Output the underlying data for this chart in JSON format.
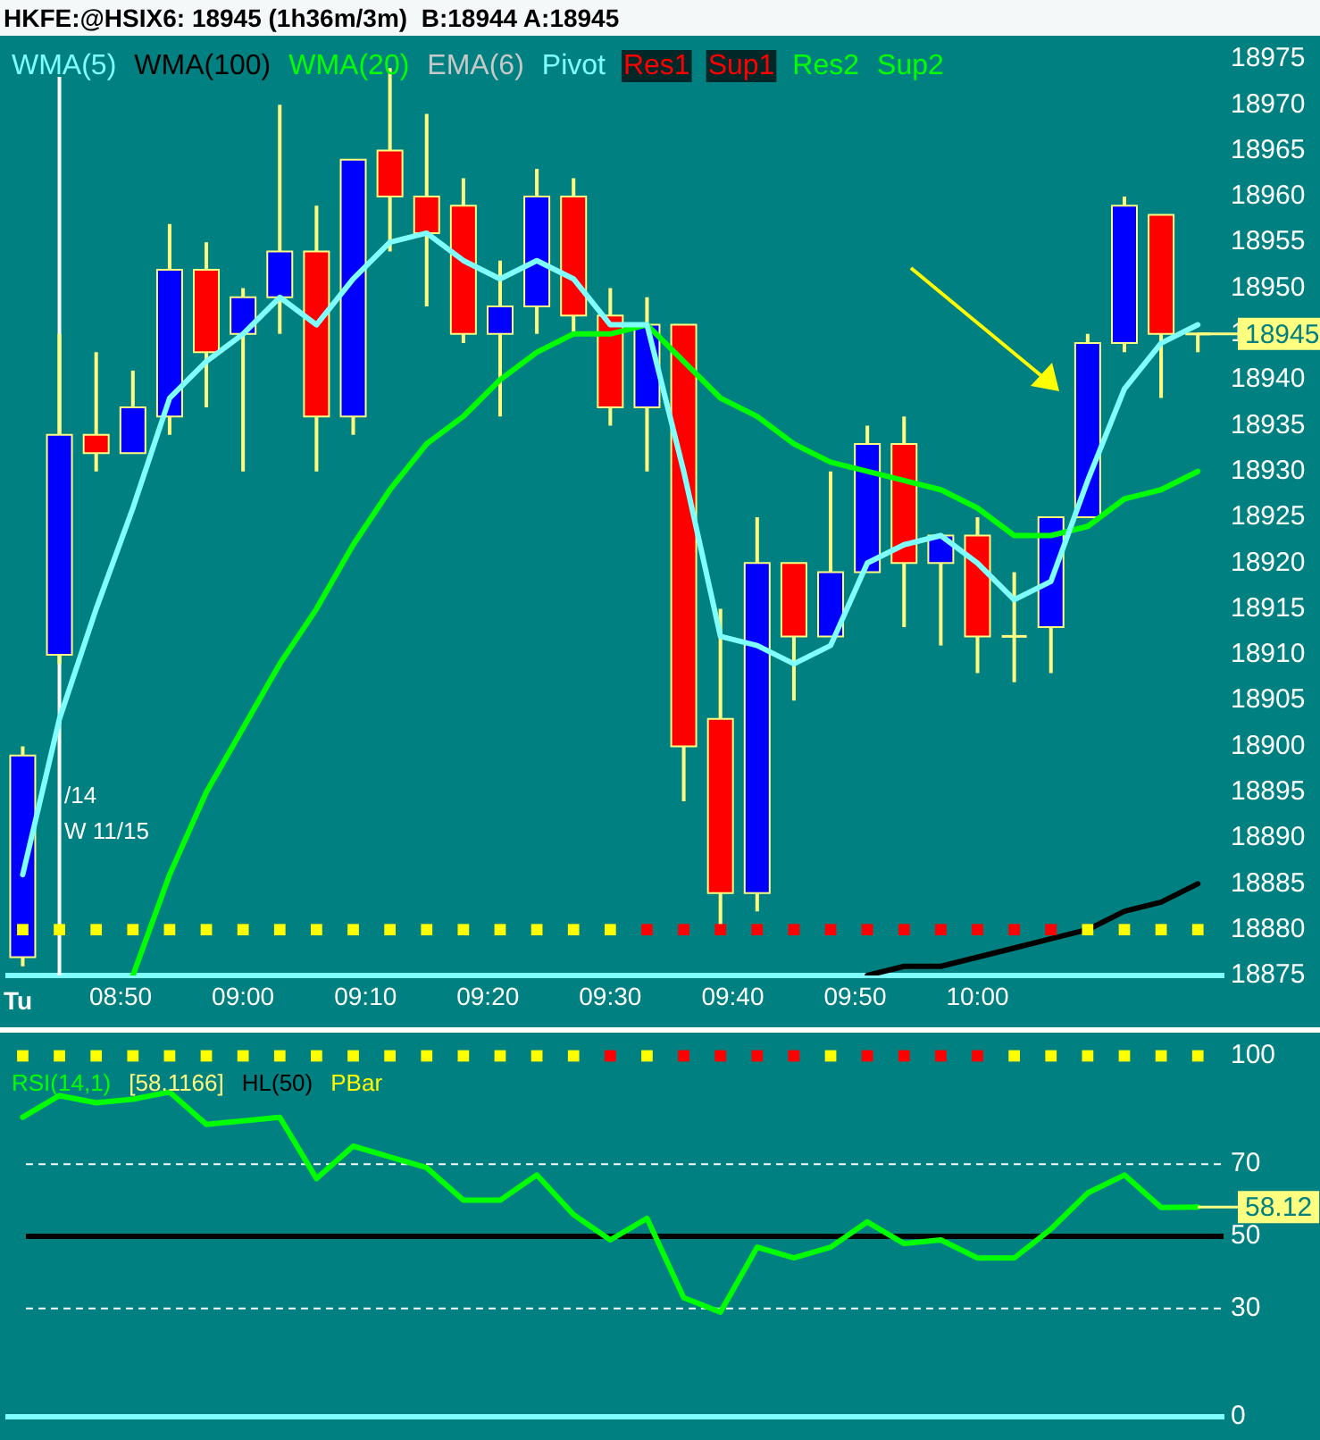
{
  "chart_data": [
    {
      "type": "candlestick",
      "title": "HKFE:@HSIX6: 18945 (1h36m/3m)  B:18944 A:18945",
      "x": [
        8.7,
        8.75,
        8.8,
        8.85,
        8.9,
        8.95,
        9,
        9.05,
        9.1,
        9.15,
        9.2,
        9.25,
        9.3,
        9.35,
        9.4,
        9.45,
        9.5,
        9.55,
        9.6,
        9.65,
        9.7,
        9.75,
        9.8,
        9.85,
        9.9,
        9.95,
        10,
        10.05,
        10.1,
        10.15,
        10.2,
        10.25,
        10.3
      ],
      "ohlc": [
        [
          18877,
          18900,
          18876,
          18899
        ],
        [
          18910,
          18945,
          18909,
          18934
        ],
        [
          18934,
          18943,
          18930,
          18932
        ],
        [
          18932,
          18941,
          18932,
          18937
        ],
        [
          18936,
          18957,
          18934,
          18952
        ],
        [
          18952,
          18955,
          18937,
          18943
        ],
        [
          18945,
          18950,
          18930,
          18949
        ],
        [
          18949,
          18970,
          18945,
          18954
        ],
        [
          18954,
          18959,
          18930,
          18936
        ],
        [
          18936,
          18964,
          18934,
          18964
        ],
        [
          18965,
          18974,
          18954,
          18960
        ],
        [
          18960,
          18969,
          18948,
          18956
        ],
        [
          18959,
          18962,
          18944,
          18945
        ],
        [
          18945,
          18953,
          18936,
          18948
        ],
        [
          18948,
          18963,
          18945,
          18960
        ],
        [
          18960,
          18962,
          18945,
          18947
        ],
        [
          18947,
          18950,
          18935,
          18937
        ],
        [
          18937,
          18949,
          18930,
          18946
        ],
        [
          18946,
          18946,
          18894,
          18900
        ],
        [
          18903,
          18915,
          18880,
          18884
        ],
        [
          18884,
          18925,
          18882,
          18920
        ],
        [
          18920,
          18920,
          18905,
          18912
        ],
        [
          18912,
          18930,
          18912,
          18919
        ],
        [
          18919,
          18935,
          18919,
          18933
        ],
        [
          18933,
          18936,
          18913,
          18920
        ],
        [
          18920,
          18923,
          18911,
          18923
        ],
        [
          18923,
          18925,
          18908,
          18912
        ],
        [
          18912,
          18919,
          18907,
          18912
        ],
        [
          18913,
          18925,
          18908,
          18925
        ],
        [
          18925,
          18945,
          18925,
          18944
        ],
        [
          18944,
          18960,
          18943,
          18959
        ],
        [
          18958,
          18958,
          18938,
          18945
        ],
        [
          18945,
          18945,
          18943,
          18945
        ]
      ],
      "colors": [
        "#0000ff",
        "#0000ff",
        "#ff0000",
        "#0000ff",
        "#0000ff",
        "#ff0000",
        "#0000ff",
        "#0000ff",
        "#ff0000",
        "#0000ff",
        "#ff0000",
        "#ff0000",
        "#ff0000",
        "#0000ff",
        "#0000ff",
        "#ff0000",
        "#ff0000",
        "#0000ff",
        "#ff0000",
        "#ff0000",
        "#0000ff",
        "#ff0000",
        "#0000ff",
        "#0000ff",
        "#ff0000",
        "#0000ff",
        "#ff0000",
        "#ffff80",
        "#0000ff",
        "#0000ff",
        "#0000ff",
        "#ff0000",
        "#ffff80"
      ],
      "series": [
        {
          "name": "WMA(5)",
          "type": "line",
          "color": "#80ffff",
          "values": [
            18886,
            18903,
            18915,
            18926,
            18938,
            18942,
            18945,
            18949,
            18946,
            18951,
            18955,
            18956,
            18953,
            18951,
            18953,
            18951,
            18946,
            18946,
            18930,
            18912,
            18911,
            18909,
            18911,
            18920,
            18922,
            18923,
            18920,
            18916,
            18918,
            18929,
            18939,
            18944,
            18946
          ]
        },
        {
          "name": "WMA(100)",
          "type": "line",
          "color": "#000000",
          "values": [
            null,
            null,
            null,
            null,
            null,
            null,
            null,
            null,
            null,
            null,
            null,
            null,
            null,
            null,
            null,
            null,
            null,
            null,
            null,
            null,
            null,
            null,
            null,
            18875,
            18876,
            18876,
            18877,
            18878,
            18879,
            18880,
            18882,
            18883,
            18885
          ]
        },
        {
          "name": "WMA(20)",
          "type": "line",
          "color": "#00ff00",
          "values": [
            null,
            null,
            null,
            18875,
            18886,
            18895,
            18902,
            18909,
            18915,
            18922,
            18928,
            18933,
            18936,
            18940,
            18943,
            18945,
            18945,
            18946,
            18942,
            18938,
            18936,
            18933,
            18931,
            18930,
            18929,
            18928,
            18926,
            18923,
            18923,
            18924,
            18927,
            18928,
            18930
          ]
        },
        {
          "type": "scatter",
          "marker": "square",
          "colors": [
            "#ffff00",
            "#ffff00",
            "#ffff00",
            "#ffff00",
            "#ffff00",
            "#ffff00",
            "#ffff00",
            "#ffff00",
            "#ffff00",
            "#ffff00",
            "#ffff00",
            "#ffff00",
            "#ffff00",
            "#ffff00",
            "#ffff00",
            "#ffff00",
            "#ffff00",
            "#ff0000",
            "#ff0000",
            "#ff0000",
            "#ff0000",
            "#ff0000",
            "#ff0000",
            "#ff0000",
            "#ff0000",
            "#ff0000",
            "#ff0000",
            "#ff0000",
            "#ff0000",
            "#ffff00",
            "#ffff00",
            "#ffff00",
            "#ffff00"
          ],
          "values": [
            18880,
            18880,
            18880,
            18880,
            18880,
            18880,
            18880,
            18880,
            18880,
            18880,
            18880,
            18880,
            18880,
            18880,
            18880,
            18880,
            18880,
            18880,
            18880,
            18880,
            18880,
            18880,
            18880,
            18880,
            18880,
            18880,
            18880,
            18880,
            18880,
            18880,
            18880,
            18880,
            18880
          ]
        }
      ],
      "xlim": [
        8.68,
        10.335
      ],
      "xticks": [
        {
          "value": 8.8333,
          "label": "08:50"
        },
        {
          "value": 9,
          "label": "09:00"
        },
        {
          "value": 9.1667,
          "label": "09:10"
        },
        {
          "value": 9.3333,
          "label": "09:20"
        },
        {
          "value": 9.5,
          "label": "09:30"
        },
        {
          "value": 9.6667,
          "label": "09:40"
        },
        {
          "value": 9.8333,
          "label": "09:50"
        },
        {
          "value": 10,
          "label": "10:00"
        }
      ],
      "ylim": [
        18875,
        18975
      ],
      "yticks": [
        18875,
        18880,
        18885,
        18890,
        18895,
        18900,
        18905,
        18910,
        18915,
        18920,
        18925,
        18930,
        18935,
        18940,
        18945,
        18950,
        18955,
        18960,
        18965,
        18970,
        18975
      ],
      "legend": "top left",
      "ref_lines": [
        {
          "axis": "x",
          "value": 8.75,
          "color": "#ffffff"
        }
      ],
      "annotations": [
        {
          "text": "18945",
          "x": 10.3,
          "y": 18945
        },
        "Tu",
        "W 11/15",
        "/14",
        "EMA(6)",
        "Pivot",
        "Res1",
        "Sup1",
        "Res2",
        "Sup2"
      ]
    },
    {
      "type": "line",
      "x": [
        8.7,
        8.75,
        8.8,
        8.85,
        8.9,
        8.95,
        9,
        9.05,
        9.1,
        9.15,
        9.2,
        9.25,
        9.3,
        9.35,
        9.4,
        9.45,
        9.5,
        9.55,
        9.6,
        9.65,
        9.7,
        9.75,
        9.8,
        9.85,
        9.9,
        9.95,
        10,
        10.05,
        10.1,
        10.15,
        10.2,
        10.25,
        10.3
      ],
      "series": [
        {
          "name": "RSI(14,1)",
          "type": "line",
          "color": "#00ff00",
          "values": [
            83,
            89,
            87,
            88,
            90,
            81,
            82,
            83,
            66,
            75,
            72,
            69,
            60,
            60,
            67,
            56,
            49,
            55,
            33,
            29,
            47,
            44,
            47,
            54,
            48,
            49,
            44,
            44,
            52,
            62,
            67,
            58,
            58.12
          ]
        },
        {
          "name": "PBar",
          "type": "scatter",
          "marker": "square",
          "colors": [
            "#ffff00",
            "#ffff00",
            "#ffff00",
            "#ffff00",
            "#ffff00",
            "#ffff00",
            "#ffff00",
            "#ffff00",
            "#ffff00",
            "#ffff00",
            "#ffff00",
            "#ffff00",
            "#ffff00",
            "#ffff00",
            "#ffff00",
            "#ffff00",
            "#ff0000",
            "#ffff00",
            "#ff0000",
            "#ff0000",
            "#ff0000",
            "#ff0000",
            "#ffff00",
            "#ff0000",
            "#ff0000",
            "#ff0000",
            "#ff0000",
            "#ffff00",
            "#ffff00",
            "#ffff00",
            "#ffff00",
            "#ffff00",
            "#ffff00"
          ],
          "values": [
            100,
            100,
            100,
            100,
            100,
            100,
            100,
            100,
            100,
            100,
            100,
            100,
            100,
            100,
            100,
            100,
            100,
            100,
            100,
            100,
            100,
            100,
            100,
            100,
            100,
            100,
            100,
            100,
            100,
            100,
            100,
            100,
            100
          ]
        }
      ],
      "xlim": [
        8.68,
        10.335
      ],
      "ylim": [
        0,
        100
      ],
      "yticks": [
        0,
        30,
        50,
        70,
        100
      ],
      "tick_labels": "y",
      "legend": "top left",
      "ref_lines": [
        {
          "axis": "y",
          "value": 50,
          "label": "HL(50)",
          "color": "#000000"
        },
        {
          "axis": "y",
          "value": 70,
          "color": "#ffffff",
          "line_style": "dashed"
        },
        {
          "axis": "y",
          "value": 30,
          "color": "#ffffff",
          "line_style": "dashed"
        }
      ],
      "annotations": [
        "[58.1166]",
        {
          "text": "58.12",
          "x": 10.3,
          "y": 58.12
        }
      ]
    }
  ]
}
